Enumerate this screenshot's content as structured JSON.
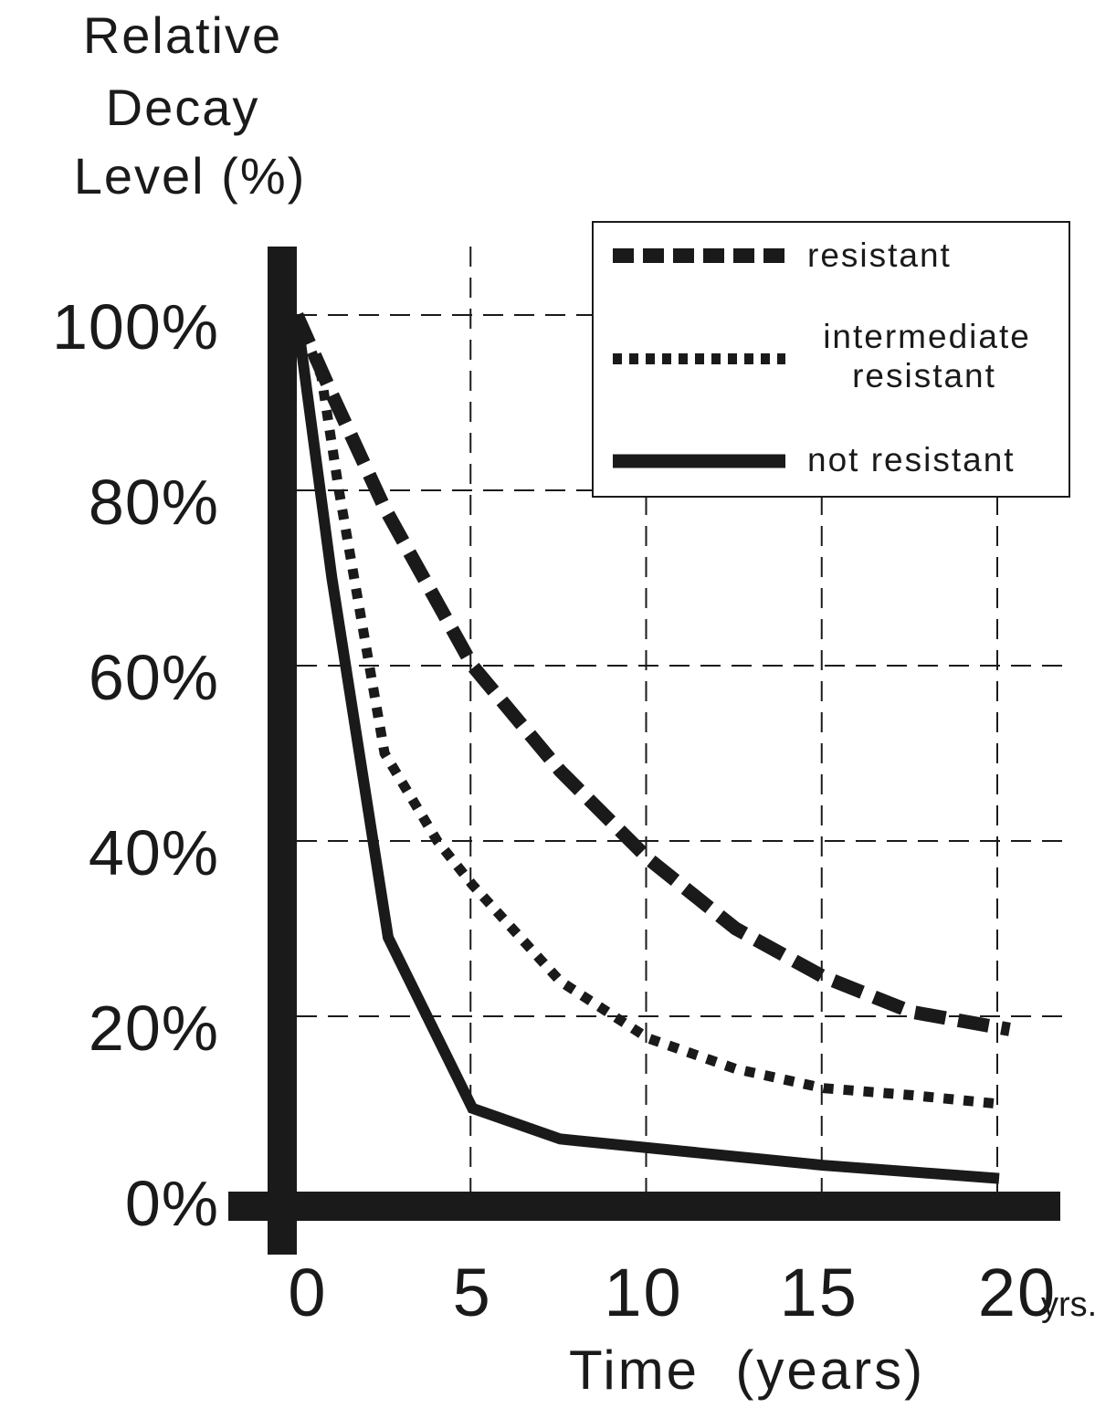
{
  "chart_data": {
    "type": "line",
    "ylabel_lines": [
      "Relative",
      "Decay",
      "Level (%)"
    ],
    "xlabel": "Time  (years)",
    "x_unit": "yrs.",
    "xlim": [
      0,
      20
    ],
    "ylim": [
      0,
      100
    ],
    "x_ticks": [
      0,
      5,
      10,
      15,
      20
    ],
    "y_ticks": [
      0,
      20,
      40,
      60,
      80,
      100
    ],
    "y_tick_labels": [
      "0%",
      "20%",
      "40%",
      "60%",
      "80%",
      "100%"
    ],
    "x_tick_labels": [
      "0",
      "5",
      "10",
      "15",
      "20"
    ],
    "grid": true,
    "legend_position": "top-right",
    "colors": {
      "line": "#1a1a1a",
      "grid": "#1a1a1a",
      "background": "#ffffff"
    },
    "series": [
      {
        "name": "resistant",
        "style": "dashed",
        "x": [
          0,
          1,
          2.5,
          5,
          7.5,
          10,
          12.5,
          15,
          17.5,
          20.3
        ],
        "y": [
          100,
          91,
          78,
          60,
          48,
          38,
          30,
          24.5,
          20.5,
          18.5
        ]
      },
      {
        "name": "intermediate resistant",
        "style": "dotted",
        "x": [
          0,
          0.7,
          1.2,
          2.5,
          4,
          5,
          7.5,
          10,
          12.5,
          15,
          17.5,
          20
        ],
        "y": [
          100,
          93,
          80,
          50,
          40,
          35,
          24,
          17.5,
          14,
          11.8,
          11,
          10
        ]
      },
      {
        "name": "not resistant",
        "style": "solid",
        "x": [
          0,
          1,
          2.6,
          5,
          7.5,
          10,
          15,
          20
        ],
        "y": [
          100,
          70,
          29,
          9.5,
          6,
          5,
          3,
          1.5
        ]
      }
    ],
    "legend_labels": [
      [
        "resistant"
      ],
      [
        "intermediate",
        "resistant"
      ],
      [
        "not  resistant"
      ]
    ]
  }
}
